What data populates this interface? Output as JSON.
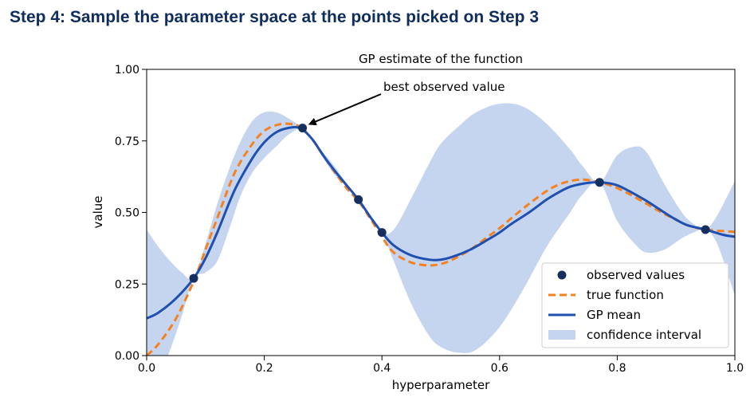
{
  "heading": "Step 4: Sample the parameter space at the points picked on Step 3",
  "chart_data": {
    "type": "line",
    "title": "GP estimate of the function",
    "xlabel": "hyperparameter",
    "ylabel": "value",
    "xlim": [
      0.0,
      1.0
    ],
    "ylim": [
      0.0,
      1.0
    ],
    "xticks": [
      0.0,
      0.2,
      0.4,
      0.6,
      0.8,
      1.0
    ],
    "xtick_labels": [
      "0.0",
      "0.2",
      "0.4",
      "0.6",
      "0.8",
      "1.0"
    ],
    "yticks": [
      0.0,
      0.25,
      0.5,
      0.75,
      1.0
    ],
    "ytick_labels": [
      "0.00",
      "0.25",
      "0.50",
      "0.75",
      "1.00"
    ],
    "grid": false,
    "legend_position": "bottom-right",
    "legend": [
      "observed values",
      "true function",
      "GP mean",
      "confidence interval"
    ],
    "annotation": {
      "text": "best observed value",
      "target_x": 0.265,
      "target_y": 0.795
    },
    "colors": {
      "observed": "#15305e",
      "true_function": "#f58220",
      "gp_mean": "#1f4fb0",
      "confidence": "#c6d5ef"
    },
    "series": [
      {
        "name": "observed values",
        "style": "points",
        "x": [
          0.08,
          0.265,
          0.36,
          0.4,
          0.77,
          0.95
        ],
        "y": [
          0.27,
          0.795,
          0.545,
          0.43,
          0.605,
          0.44
        ]
      },
      {
        "name": "true function",
        "style": "dashed",
        "x": [
          0.0,
          0.02,
          0.05,
          0.08,
          0.1,
          0.12,
          0.15,
          0.18,
          0.2,
          0.22,
          0.24,
          0.26,
          0.28,
          0.3,
          0.32,
          0.34,
          0.36,
          0.38,
          0.4,
          0.42,
          0.45,
          0.48,
          0.5,
          0.52,
          0.55,
          0.58,
          0.6,
          0.62,
          0.65,
          0.68,
          0.7,
          0.72,
          0.74,
          0.76,
          0.78,
          0.8,
          0.82,
          0.85,
          0.88,
          0.9,
          0.92,
          0.95,
          0.98,
          1.0
        ],
        "y": [
          0.0,
          0.04,
          0.13,
          0.26,
          0.37,
          0.48,
          0.64,
          0.74,
          0.785,
          0.805,
          0.81,
          0.8,
          0.76,
          0.7,
          0.64,
          0.585,
          0.54,
          0.48,
          0.415,
          0.36,
          0.325,
          0.315,
          0.32,
          0.335,
          0.37,
          0.415,
          0.445,
          0.48,
          0.53,
          0.575,
          0.597,
          0.61,
          0.615,
          0.61,
          0.6,
          0.585,
          0.565,
          0.53,
          0.495,
          0.475,
          0.455,
          0.44,
          0.435,
          0.432
        ]
      },
      {
        "name": "GP mean",
        "style": "solid",
        "x": [
          0.0,
          0.02,
          0.05,
          0.08,
          0.1,
          0.12,
          0.15,
          0.18,
          0.2,
          0.22,
          0.24,
          0.26,
          0.28,
          0.3,
          0.32,
          0.34,
          0.36,
          0.38,
          0.4,
          0.42,
          0.45,
          0.48,
          0.5,
          0.52,
          0.55,
          0.58,
          0.6,
          0.62,
          0.65,
          0.68,
          0.7,
          0.72,
          0.74,
          0.76,
          0.78,
          0.8,
          0.82,
          0.85,
          0.88,
          0.9,
          0.92,
          0.95,
          0.98,
          1.0
        ],
        "y": [
          0.13,
          0.15,
          0.2,
          0.27,
          0.34,
          0.43,
          0.58,
          0.69,
          0.745,
          0.78,
          0.795,
          0.795,
          0.76,
          0.7,
          0.645,
          0.595,
          0.545,
          0.485,
          0.43,
          0.385,
          0.35,
          0.335,
          0.335,
          0.345,
          0.37,
          0.405,
          0.43,
          0.46,
          0.5,
          0.545,
          0.57,
          0.59,
          0.6,
          0.605,
          0.604,
          0.595,
          0.575,
          0.54,
          0.5,
          0.475,
          0.455,
          0.44,
          0.422,
          0.415
        ]
      },
      {
        "name": "confidence interval",
        "style": "band",
        "x": [
          0.0,
          0.02,
          0.04,
          0.06,
          0.08,
          0.1,
          0.12,
          0.14,
          0.16,
          0.18,
          0.2,
          0.22,
          0.24,
          0.265,
          0.28,
          0.3,
          0.32,
          0.34,
          0.36,
          0.38,
          0.4,
          0.42,
          0.45,
          0.48,
          0.5,
          0.53,
          0.56,
          0.6,
          0.64,
          0.68,
          0.72,
          0.74,
          0.77,
          0.8,
          0.83,
          0.85,
          0.88,
          0.91,
          0.93,
          0.95,
          0.97,
          1.0
        ],
        "upper": [
          0.44,
          0.38,
          0.33,
          0.29,
          0.27,
          0.39,
          0.53,
          0.65,
          0.75,
          0.82,
          0.85,
          0.85,
          0.83,
          0.795,
          0.76,
          0.71,
          0.66,
          0.6,
          0.545,
          0.49,
          0.43,
          0.44,
          0.55,
          0.67,
          0.74,
          0.8,
          0.85,
          0.88,
          0.87,
          0.81,
          0.72,
          0.665,
          0.605,
          0.7,
          0.73,
          0.71,
          0.6,
          0.5,
          0.46,
          0.44,
          0.49,
          0.61
        ],
        "lower": [
          -0.18,
          -0.08,
          0.02,
          0.14,
          0.27,
          0.29,
          0.33,
          0.44,
          0.56,
          0.64,
          0.69,
          0.73,
          0.77,
          0.795,
          0.76,
          0.69,
          0.63,
          0.59,
          0.545,
          0.48,
          0.43,
          0.33,
          0.18,
          0.07,
          0.03,
          0.01,
          0.02,
          0.1,
          0.23,
          0.38,
          0.5,
          0.56,
          0.605,
          0.47,
          0.39,
          0.36,
          0.37,
          0.41,
          0.43,
          0.44,
          0.39,
          0.21
        ]
      }
    ]
  }
}
